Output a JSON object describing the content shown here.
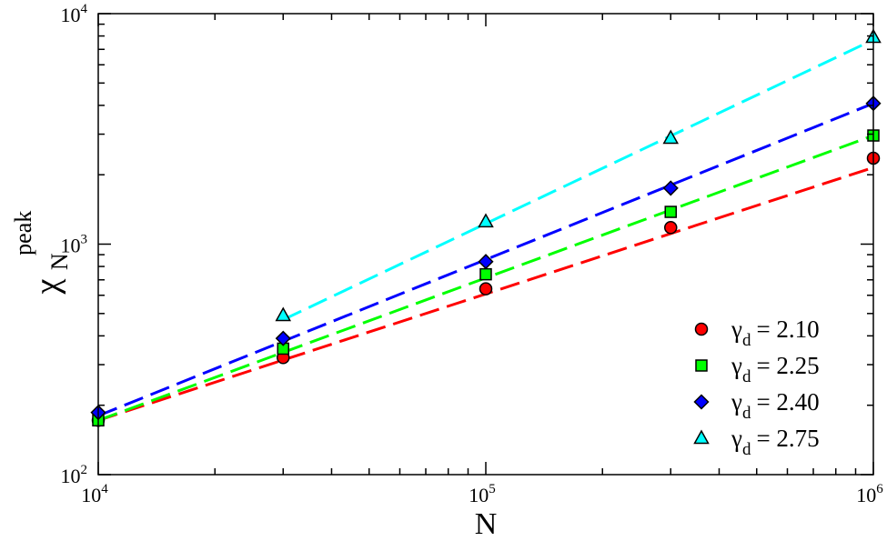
{
  "chart_data": {
    "type": "scatter",
    "xlabel": "N",
    "ylabel": "χ",
    "ylabel_sub": "N",
    "ylabel_sup": "peak",
    "x_scale": "log",
    "y_scale": "log",
    "xlim": [
      10000,
      1000000
    ],
    "ylim": [
      100,
      10000
    ],
    "x_major_ticks": [
      {
        "value": 10000,
        "base": "10",
        "exp": "4"
      },
      {
        "value": 100000,
        "base": "10",
        "exp": "5"
      },
      {
        "value": 1000000,
        "base": "10",
        "exp": "6"
      }
    ],
    "y_major_ticks": [
      {
        "value": 100,
        "base": "10",
        "exp": "2"
      },
      {
        "value": 1000,
        "base": "10",
        "exp": "3"
      },
      {
        "value": 10000,
        "base": "10",
        "exp": "4"
      }
    ],
    "grid": false,
    "legend_position": "bottom-right",
    "series": [
      {
        "name": "2.10",
        "legend_label": "γ",
        "legend_sub": "d",
        "legend_eq": "= 2.10",
        "marker": "circle",
        "color": "#ff0000",
        "x": [
          10000,
          30000,
          100000,
          300000,
          1000000
        ],
        "y": [
          172,
          322,
          640,
          1180,
          2360
        ],
        "fit": {
          "x": [
            10000,
            1000000
          ],
          "y": [
            172,
            2150
          ]
        }
      },
      {
        "name": "2.25",
        "legend_label": "γ",
        "legend_sub": "d",
        "legend_eq": "= 2.25",
        "marker": "square",
        "color": "#00ff00",
        "x": [
          10000,
          30000,
          100000,
          300000,
          1000000
        ],
        "y": [
          172,
          352,
          740,
          1380,
          2960
        ],
        "fit": {
          "x": [
            10000,
            1000000
          ],
          "y": [
            172,
            2960
          ]
        }
      },
      {
        "name": "2.40",
        "legend_label": "γ",
        "legend_sub": "d",
        "legend_eq": "= 2.40",
        "marker": "diamond",
        "color": "#0000ff",
        "x": [
          10000,
          30000,
          100000,
          300000,
          1000000
        ],
        "y": [
          186,
          390,
          840,
          1750,
          4080
        ],
        "fit": {
          "x": [
            10000,
            1000000
          ],
          "y": [
            180,
            4080
          ]
        }
      },
      {
        "name": "2.75",
        "legend_label": "γ",
        "legend_sub": "d",
        "legend_eq": "= 2.75",
        "marker": "triangle",
        "color": "#00ffff",
        "x": [
          30000,
          100000,
          300000,
          1000000
        ],
        "y": [
          490,
          1250,
          2880,
          7900
        ],
        "fit": {
          "x": [
            30000,
            1000000
          ],
          "y": [
            470,
            7700
          ]
        }
      }
    ]
  }
}
